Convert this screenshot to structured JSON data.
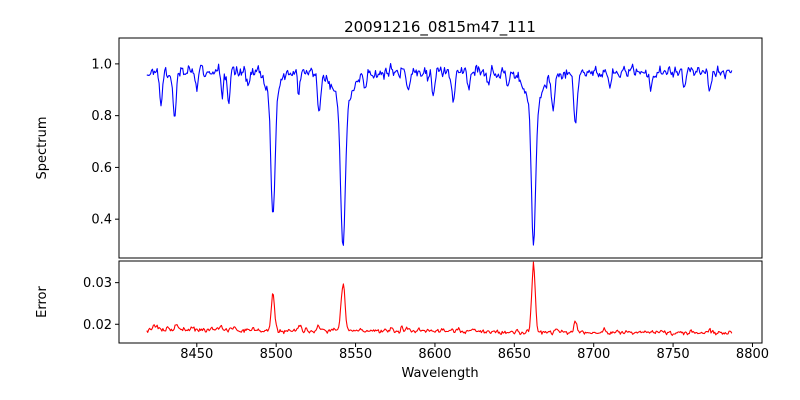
{
  "title": "20091216_0815m47_111",
  "chart_data": {
    "type": "line",
    "title": "20091216_0815m47_111",
    "xlabel": "Wavelength",
    "xlim": [
      8401,
      8806
    ],
    "x_range_data": [
      8418.5,
      8787
    ],
    "x_ticks": [
      {
        "v": 8450,
        "label": "8450"
      },
      {
        "v": 8500,
        "label": "8500"
      },
      {
        "v": 8550,
        "label": "8550"
      },
      {
        "v": 8600,
        "label": "8600"
      },
      {
        "v": 8650,
        "label": "8650"
      },
      {
        "v": 8700,
        "label": "8700"
      },
      {
        "v": 8750,
        "label": "8750"
      },
      {
        "v": 8800,
        "label": "8800"
      }
    ],
    "n_points": 620,
    "noise_seed": 11,
    "grid": false,
    "legend": "none",
    "subplots": [
      {
        "name": "spectrum",
        "ylabel": "Spectrum",
        "ylim": [
          0.25,
          1.1
        ],
        "y_ticks": [
          {
            "v": 0.4,
            "label": "0.4"
          },
          {
            "v": 0.6,
            "label": "0.6"
          },
          {
            "v": 0.8,
            "label": "0.8"
          },
          {
            "v": 1.0,
            "label": "1.0"
          }
        ],
        "color": "#0000ff",
        "continuum": 0.968,
        "noise_sigma": 0.016,
        "absorption_lines": [
          {
            "c": 8427.5,
            "d": 0.12,
            "s": 0.9
          },
          {
            "c": 8436.0,
            "d": 0.17,
            "s": 1.0
          },
          {
            "c": 8450.0,
            "d": 0.05,
            "s": 0.8
          },
          {
            "c": 8466.0,
            "d": 0.08,
            "s": 0.8
          },
          {
            "c": 8470.0,
            "d": 0.13,
            "s": 0.9
          },
          {
            "c": 8482.0,
            "d": 0.05,
            "s": 0.8
          },
          {
            "c": 8498.0,
            "d": 0.47,
            "s": 1.2,
            "wd": 0.1,
            "ws": 4.0
          },
          {
            "c": 8514.2,
            "d": 0.07,
            "s": 0.8
          },
          {
            "c": 8527.0,
            "d": 0.15,
            "s": 1.0
          },
          {
            "c": 8542.1,
            "d": 0.55,
            "s": 1.4,
            "wd": 0.13,
            "ws": 6.0
          },
          {
            "c": 8556.0,
            "d": 0.05,
            "s": 0.8
          },
          {
            "c": 8583.0,
            "d": 0.07,
            "s": 0.9
          },
          {
            "c": 8599.0,
            "d": 0.08,
            "s": 0.9
          },
          {
            "c": 8611.8,
            "d": 0.12,
            "s": 1.0
          },
          {
            "c": 8621.0,
            "d": 0.06,
            "s": 0.9
          },
          {
            "c": 8634.0,
            "d": 0.05,
            "s": 0.8
          },
          {
            "c": 8646.0,
            "d": 0.06,
            "s": 0.8
          },
          {
            "c": 8662.1,
            "d": 0.54,
            "s": 1.3,
            "wd": 0.13,
            "ws": 5.5
          },
          {
            "c": 8674.5,
            "d": 0.13,
            "s": 1.0
          },
          {
            "c": 8688.5,
            "d": 0.2,
            "s": 1.1
          },
          {
            "c": 8710.0,
            "d": 0.06,
            "s": 0.9
          },
          {
            "c": 8736.0,
            "d": 0.06,
            "s": 0.9
          },
          {
            "c": 8757.0,
            "d": 0.05,
            "s": 0.8
          },
          {
            "c": 8773.0,
            "d": 0.07,
            "s": 0.9
          }
        ]
      },
      {
        "name": "error",
        "ylabel": "Error",
        "ylim": [
          0.0155,
          0.0352
        ],
        "y_ticks": [
          {
            "v": 0.02,
            "label": "0.02"
          },
          {
            "v": 0.03,
            "label": "0.03"
          }
        ],
        "color": "#ff0000",
        "baseline_left": 0.0187,
        "baseline_right": 0.018,
        "noise_sigma": 0.00038,
        "peaks": [
          {
            "c": 8424.0,
            "d": 0.0008,
            "s": 2.0
          },
          {
            "c": 8437.0,
            "d": 0.0018,
            "s": 0.7
          },
          {
            "c": 8448.0,
            "d": 0.0006,
            "s": 1.2
          },
          {
            "c": 8465.0,
            "d": 0.0008,
            "s": 1.0
          },
          {
            "c": 8498.0,
            "d": 0.0085,
            "s": 1.0
          },
          {
            "c": 8515.0,
            "d": 0.0012,
            "s": 0.9
          },
          {
            "c": 8527.0,
            "d": 0.0009,
            "s": 0.9
          },
          {
            "c": 8542.1,
            "d": 0.0115,
            "s": 1.2
          },
          {
            "c": 8583.0,
            "d": 0.0007,
            "s": 0.9
          },
          {
            "c": 8611.0,
            "d": 0.0007,
            "s": 0.9
          },
          {
            "c": 8662.1,
            "d": 0.016,
            "s": 1.1
          },
          {
            "c": 8676.0,
            "d": 0.0007,
            "s": 0.9
          },
          {
            "c": 8688.5,
            "d": 0.0024,
            "s": 0.8
          },
          {
            "c": 8773.0,
            "d": 0.0006,
            "s": 0.9
          }
        ]
      }
    ]
  }
}
